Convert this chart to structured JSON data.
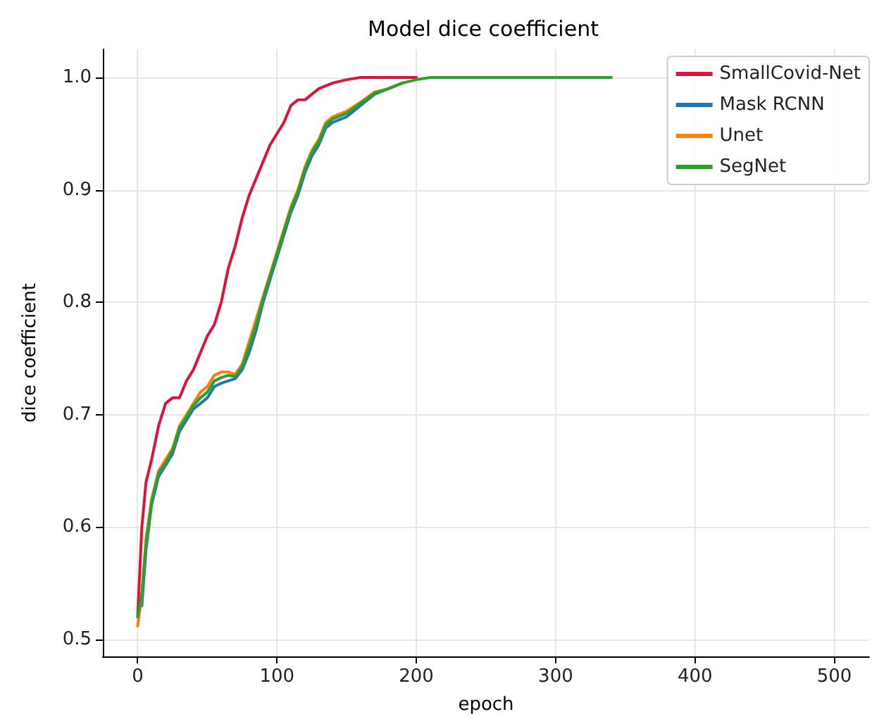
{
  "chart_data": {
    "type": "line",
    "title": "Model dice coefficient",
    "xlabel": "epoch",
    "ylabel": "dice coefficient",
    "xlim": [
      -25,
      525
    ],
    "ylim": [
      0.485,
      1.025
    ],
    "xticks": [
      0,
      100,
      200,
      300,
      400,
      500
    ],
    "yticks": [
      0.5,
      0.6,
      0.7,
      0.8,
      0.9,
      {
        "value": 1,
        "label": "1.0"
      }
    ],
    "grid": true,
    "legend": "top right",
    "line_style": "solid",
    "marker": "none",
    "series": [
      {
        "name": "SmallCovid-Net",
        "color": "#dc143c",
        "x": [
          0,
          3,
          6,
          10,
          15,
          20,
          25,
          30,
          35,
          40,
          45,
          50,
          55,
          60,
          65,
          70,
          75,
          80,
          85,
          90,
          95,
          100,
          105,
          110,
          115,
          120,
          130,
          140,
          150,
          160,
          200
        ],
        "values": [
          0.52,
          0.6,
          0.64,
          0.66,
          0.69,
          0.71,
          0.715,
          0.715,
          0.73,
          0.74,
          0.755,
          0.77,
          0.78,
          0.8,
          0.83,
          0.85,
          0.875,
          0.895,
          0.91,
          0.925,
          0.94,
          0.95,
          0.96,
          0.975,
          0.98,
          0.98,
          0.99,
          0.995,
          0.998,
          1.0,
          1.0
        ]
      },
      {
        "name": "Mask RCNN",
        "color": "#1f77b4",
        "x": [
          3,
          6,
          10,
          15,
          20,
          25,
          30,
          35,
          40,
          45,
          50,
          55,
          60,
          65,
          70,
          75,
          80,
          85,
          90,
          95,
          100,
          105,
          110,
          115,
          120,
          125,
          130,
          135,
          140,
          150,
          160,
          170,
          180,
          190
        ],
        "values": [
          0.53,
          0.58,
          0.62,
          0.645,
          0.655,
          0.665,
          0.685,
          0.695,
          0.705,
          0.71,
          0.715,
          0.725,
          0.728,
          0.73,
          0.732,
          0.74,
          0.755,
          0.775,
          0.8,
          0.82,
          0.84,
          0.86,
          0.88,
          0.895,
          0.915,
          0.93,
          0.94,
          0.955,
          0.96,
          0.965,
          0.975,
          0.985,
          0.99,
          0.995
        ]
      },
      {
        "name": "Unet",
        "color": "#ff7f0e",
        "x": [
          0,
          3,
          6,
          10,
          15,
          20,
          25,
          30,
          35,
          40,
          45,
          50,
          55,
          60,
          65,
          70,
          75,
          80,
          85,
          90,
          95,
          100,
          105,
          110,
          115,
          120,
          125,
          130,
          135,
          140,
          150,
          160,
          170,
          180,
          190
        ],
        "values": [
          0.512,
          0.54,
          0.59,
          0.625,
          0.65,
          0.66,
          0.67,
          0.69,
          0.7,
          0.71,
          0.72,
          0.725,
          0.735,
          0.738,
          0.738,
          0.736,
          0.745,
          0.765,
          0.785,
          0.805,
          0.825,
          0.845,
          0.865,
          0.885,
          0.9,
          0.92,
          0.935,
          0.945,
          0.96,
          0.965,
          0.97,
          0.978,
          0.987,
          0.99,
          0.995
        ]
      },
      {
        "name": "SegNet",
        "color": "#2ca02c",
        "x": [
          0,
          3,
          6,
          10,
          15,
          20,
          25,
          30,
          35,
          40,
          45,
          50,
          55,
          60,
          65,
          70,
          75,
          80,
          85,
          90,
          95,
          100,
          105,
          110,
          115,
          120,
          125,
          130,
          135,
          140,
          150,
          160,
          170,
          180,
          190,
          200,
          210,
          300,
          340
        ],
        "values": [
          0.52,
          0.54,
          0.585,
          0.622,
          0.648,
          0.657,
          0.668,
          0.688,
          0.698,
          0.708,
          0.715,
          0.72,
          0.73,
          0.733,
          0.735,
          0.734,
          0.743,
          0.76,
          0.78,
          0.803,
          0.823,
          0.843,
          0.863,
          0.883,
          0.898,
          0.918,
          0.933,
          0.943,
          0.958,
          0.963,
          0.968,
          0.977,
          0.986,
          0.99,
          0.995,
          0.998,
          1.0,
          1.0,
          1.0
        ]
      }
    ]
  }
}
